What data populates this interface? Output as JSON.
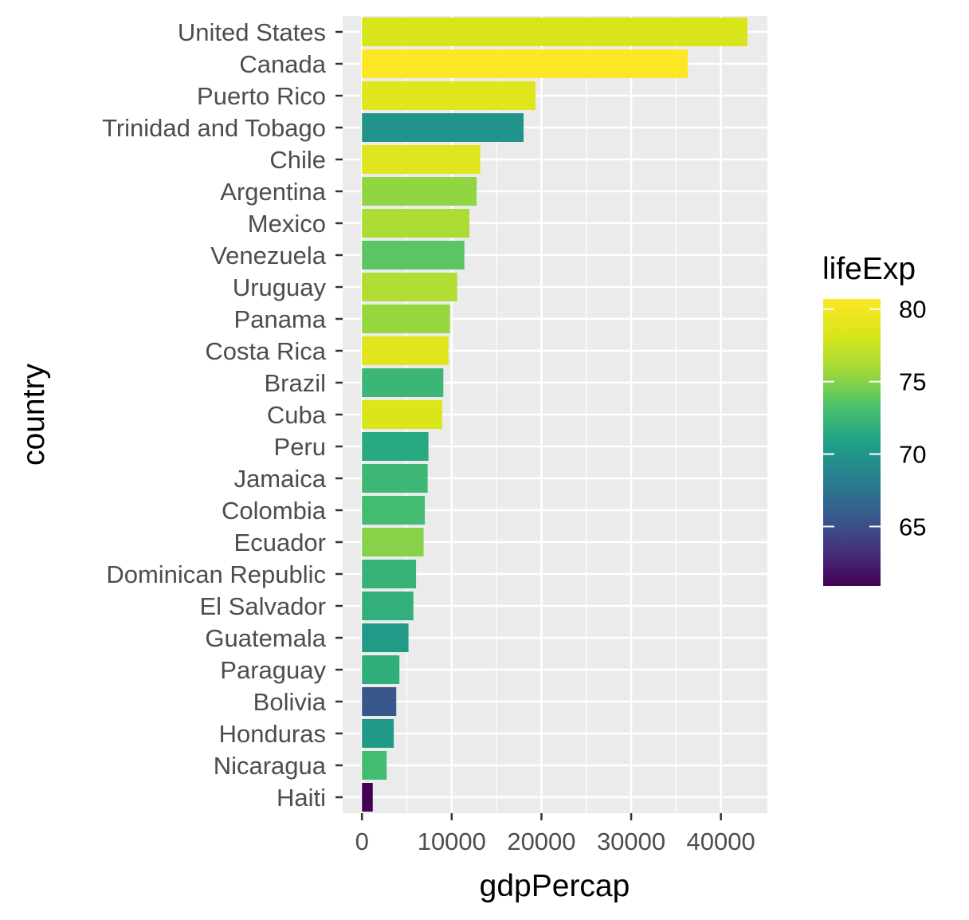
{
  "chart_data": {
    "type": "bar",
    "orientation": "horizontal",
    "xlabel": "gdpPercap",
    "ylabel": "country",
    "xlim": [
      -2150,
      45180
    ],
    "x_ticks": [
      0,
      10000,
      20000,
      30000,
      40000
    ],
    "x_tick_labels": [
      "0",
      "10000",
      "20000",
      "30000",
      "40000"
    ],
    "grid": true,
    "categories": [
      "United States",
      "Canada",
      "Puerto Rico",
      "Trinidad and Tobago",
      "Chile",
      "Argentina",
      "Mexico",
      "Venezuela",
      "Uruguay",
      "Panama",
      "Costa Rica",
      "Brazil",
      "Cuba",
      "Peru",
      "Jamaica",
      "Colombia",
      "Ecuador",
      "Dominican Republic",
      "El Salvador",
      "Guatemala",
      "Paraguay",
      "Bolivia",
      "Honduras",
      "Nicaragua",
      "Haiti"
    ],
    "values": [
      42952,
      36319,
      19329,
      18009,
      13172,
      12779,
      11978,
      11416,
      10611,
      9809,
      9645,
      9066,
      8948,
      7409,
      7321,
      7007,
      6873,
      6025,
      5728,
      5186,
      4173,
      3822,
      3548,
      2749,
      1202
    ],
    "color_values": [
      78.2,
      80.7,
      78.7,
      69.8,
      78.6,
      75.3,
      76.2,
      73.7,
      76.4,
      75.5,
      78.8,
      72.4,
      78.3,
      71.4,
      72.6,
      72.9,
      75.0,
      72.2,
      71.9,
      70.3,
      71.8,
      65.6,
      70.2,
      72.9,
      60.9
    ],
    "legend": {
      "title": "lifeExp",
      "placement": "right",
      "type": "colorbar",
      "limits": [
        60.9,
        80.7
      ],
      "ticks": [
        65,
        70,
        75,
        80
      ],
      "tick_labels": [
        "65",
        "70",
        "75",
        "80"
      ],
      "palette": "viridis"
    },
    "colors": {
      "panel_background": "#ebebeb",
      "grid_line": "#ffffff",
      "tick_mark": "#333333"
    }
  }
}
